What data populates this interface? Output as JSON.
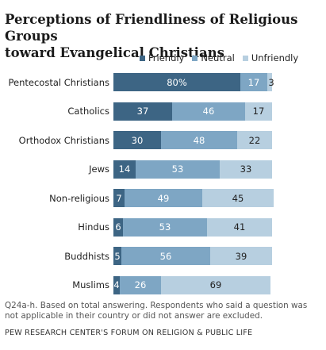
{
  "chart_data": {
    "type": "bar",
    "orientation": "horizontal",
    "stacked": true,
    "title_line1": "Perceptions of Friendliness of Religious Groups",
    "title_line2": "toward Evangelical Christians",
    "categories": [
      "Pentecostal Christians",
      "Catholics",
      "Orthodox Christians",
      "Jews",
      "Non-religious",
      "Hindus",
      "Buddhists",
      "Muslims"
    ],
    "series": [
      {
        "name": "Friendly",
        "color": "#3d6584",
        "values": [
          80,
          37,
          30,
          14,
          7,
          6,
          5,
          4
        ],
        "labels": [
          "80%",
          "37",
          "30",
          "14",
          "7",
          "6",
          "5",
          "4"
        ]
      },
      {
        "name": "Neutral",
        "color": "#7ea6c4",
        "values": [
          17,
          46,
          48,
          53,
          49,
          53,
          56,
          26
        ],
        "labels": [
          "17",
          "46",
          "48",
          "53",
          "49",
          "53",
          "56",
          "26"
        ]
      },
      {
        "name": "Unfriendly",
        "color": "#b7cfe0",
        "values": [
          3,
          17,
          22,
          33,
          45,
          41,
          39,
          69
        ],
        "labels": [
          "3",
          "17",
          "22",
          "33",
          "45",
          "41",
          "39",
          "69"
        ]
      }
    ],
    "xlim": [
      0,
      100
    ],
    "legend_position": "top",
    "grid": false
  },
  "footnote": "Q24a-h. Based on total answering.  Respondents who said a question was not applicable in their country or did not answer are excluded.",
  "source": "PEW RESEARCH CENTER'S FORUM ON RELIGION & PUBLIC LIFE"
}
